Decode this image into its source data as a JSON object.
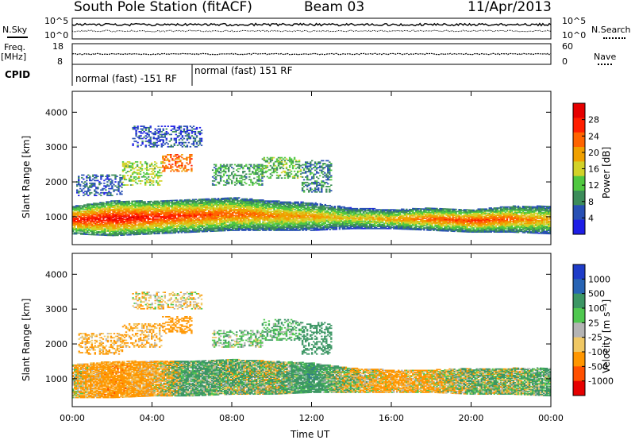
{
  "header": {
    "station": "South Pole Station (fitACF)",
    "beam": "Beam 03",
    "date": "11/Apr/2013"
  },
  "top_panels": {
    "nsky_label": "N.Sky",
    "nsearch_label": "N.Search",
    "freq_label_1": "Freq.",
    "freq_label_2": "[MHz]",
    "nave_label": "Nave",
    "cpid_label": "CPID",
    "left_tick_high": "10^5",
    "left_tick_low": "10^0",
    "right_tick_high": "10^5",
    "right_tick_low": "10^0",
    "freq_tick_high": "18",
    "freq_tick_low": "8",
    "nave_tick_high": "60",
    "nave_tick_low": "0",
    "cpid_segments": [
      {
        "label": "normal (fast) -151 RF",
        "start_h": 0.0,
        "end_h": 6.0
      },
      {
        "label": "normal (fast) 151 RF",
        "start_h": 6.0,
        "end_h": 24.0
      }
    ]
  },
  "colors": {
    "power": [
      "#1e1ee6",
      "#2850b4",
      "#3c8c5a",
      "#50c840",
      "#d2d228",
      "#f0a000",
      "#ff6400",
      "#ff1e00",
      "#e60000"
    ],
    "velocity": [
      "#e60000",
      "#ff5000",
      "#ff9600",
      "#f0c864",
      "#b4b4b4",
      "#50c850",
      "#3c9664",
      "#2864b4",
      "#1e3cc8"
    ]
  },
  "chart_data": [
    {
      "type": "heatmap",
      "name": "power",
      "xlabel": "",
      "ylabel": "Slant Range [km]",
      "x_range_h": [
        0,
        24
      ],
      "ylim": [
        200,
        4600
      ],
      "y_ticks": [
        "1000",
        "2000",
        "3000",
        "4000"
      ],
      "colorbar_label": "Power [dB]",
      "colorbar_ticks": [
        "4",
        "8",
        "12",
        "16",
        "20",
        "24",
        "28"
      ],
      "colorbar_range": [
        0,
        32
      ],
      "main_band": [
        {
          "t": 0,
          "lo": 500,
          "hi": 1300,
          "peak": 28
        },
        {
          "t": 2,
          "lo": 450,
          "hi": 1450,
          "peak": 30
        },
        {
          "t": 4,
          "lo": 500,
          "hi": 1450,
          "peak": 28
        },
        {
          "t": 6,
          "lo": 550,
          "hi": 1500,
          "peak": 26
        },
        {
          "t": 8,
          "lo": 600,
          "hi": 1550,
          "peak": 24
        },
        {
          "t": 10,
          "lo": 600,
          "hi": 1450,
          "peak": 22
        },
        {
          "t": 12,
          "lo": 600,
          "hi": 1400,
          "peak": 20
        },
        {
          "t": 14,
          "lo": 650,
          "hi": 1250,
          "peak": 18
        },
        {
          "t": 16,
          "lo": 650,
          "hi": 1200,
          "peak": 20
        },
        {
          "t": 18,
          "lo": 600,
          "hi": 1250,
          "peak": 24
        },
        {
          "t": 20,
          "lo": 550,
          "hi": 1200,
          "peak": 26
        },
        {
          "t": 22,
          "lo": 550,
          "hi": 1300,
          "peak": 24
        },
        {
          "t": 24,
          "lo": 500,
          "hi": 1300,
          "peak": 20
        }
      ],
      "upper_patches": [
        {
          "t0": 2.5,
          "t1": 4.5,
          "r0": 1900,
          "r1": 2600,
          "val": 14
        },
        {
          "t0": 4.5,
          "t1": 6.0,
          "r0": 2300,
          "r1": 2800,
          "val": 22
        },
        {
          "t0": 7.0,
          "t1": 9.5,
          "r0": 1900,
          "r1": 2500,
          "val": 10
        },
        {
          "t0": 9.5,
          "t1": 11.5,
          "r0": 2100,
          "r1": 2700,
          "val": 12
        },
        {
          "t0": 11.5,
          "t1": 13.0,
          "r0": 1700,
          "r1": 2600,
          "val": 8
        },
        {
          "t0": 0.2,
          "t1": 2.5,
          "r0": 1600,
          "r1": 2200,
          "val": 6
        },
        {
          "t0": 3.0,
          "t1": 6.5,
          "r0": 3000,
          "r1": 3600,
          "val": 5
        }
      ]
    },
    {
      "type": "heatmap",
      "name": "velocity",
      "xlabel": "Time UT",
      "ylabel": "Slant Range [km]",
      "x_range_h": [
        0,
        24
      ],
      "x_ticks": [
        "00:00",
        "04:00",
        "08:00",
        "12:00",
        "16:00",
        "20:00",
        "00:00"
      ],
      "ylim": [
        200,
        4600
      ],
      "y_ticks": [
        "1000",
        "2000",
        "3000",
        "4000"
      ],
      "colorbar_label": "Velocity [m s⁻¹]",
      "colorbar_ticks": [
        "1000",
        "500",
        "100",
        "25",
        "-25",
        "-100",
        "-500",
        "-1000"
      ],
      "main_band": [
        {
          "t": 0,
          "lo": 450,
          "hi": 1400,
          "vel": -100
        },
        {
          "t": 2,
          "lo": 450,
          "hi": 1500,
          "vel": -300
        },
        {
          "t": 4,
          "lo": 500,
          "hi": 1500,
          "vel": -200
        },
        {
          "t": 6,
          "lo": 500,
          "hi": 1500,
          "vel": 200
        },
        {
          "t": 8,
          "lo": 550,
          "hi": 1550,
          "vel": 100
        },
        {
          "t": 10,
          "lo": 550,
          "hi": 1500,
          "vel": 50
        },
        {
          "t": 12,
          "lo": 600,
          "hi": 1450,
          "vel": 300
        },
        {
          "t": 14,
          "lo": 600,
          "hi": 1300,
          "vel": -50
        },
        {
          "t": 16,
          "lo": 600,
          "hi": 1250,
          "vel": -200
        },
        {
          "t": 18,
          "lo": 600,
          "hi": 1250,
          "vel": -150
        },
        {
          "t": 20,
          "lo": 550,
          "hi": 1300,
          "vel": 100
        },
        {
          "t": 22,
          "lo": 550,
          "hi": 1300,
          "vel": 50
        },
        {
          "t": 24,
          "lo": 500,
          "hi": 1300,
          "vel": 200
        }
      ],
      "upper_patches": [
        {
          "t0": 2.5,
          "t1": 4.5,
          "r0": 1900,
          "r1": 2600,
          "vel": -100
        },
        {
          "t0": 4.5,
          "t1": 6.0,
          "r0": 2300,
          "r1": 2800,
          "vel": -200
        },
        {
          "t0": 7.0,
          "t1": 9.5,
          "r0": 1900,
          "r1": 2400,
          "vel": 50
        },
        {
          "t0": 9.5,
          "t1": 11.5,
          "r0": 2100,
          "r1": 2700,
          "vel": 100
        },
        {
          "t0": 11.5,
          "t1": 13.0,
          "r0": 1700,
          "r1": 2600,
          "vel": 300
        },
        {
          "t0": 0.3,
          "t1": 2.5,
          "r0": 1700,
          "r1": 2300,
          "vel": -100
        },
        {
          "t0": 3.0,
          "t1": 6.5,
          "r0": 3000,
          "r1": 3500,
          "vel": -50
        }
      ]
    }
  ]
}
